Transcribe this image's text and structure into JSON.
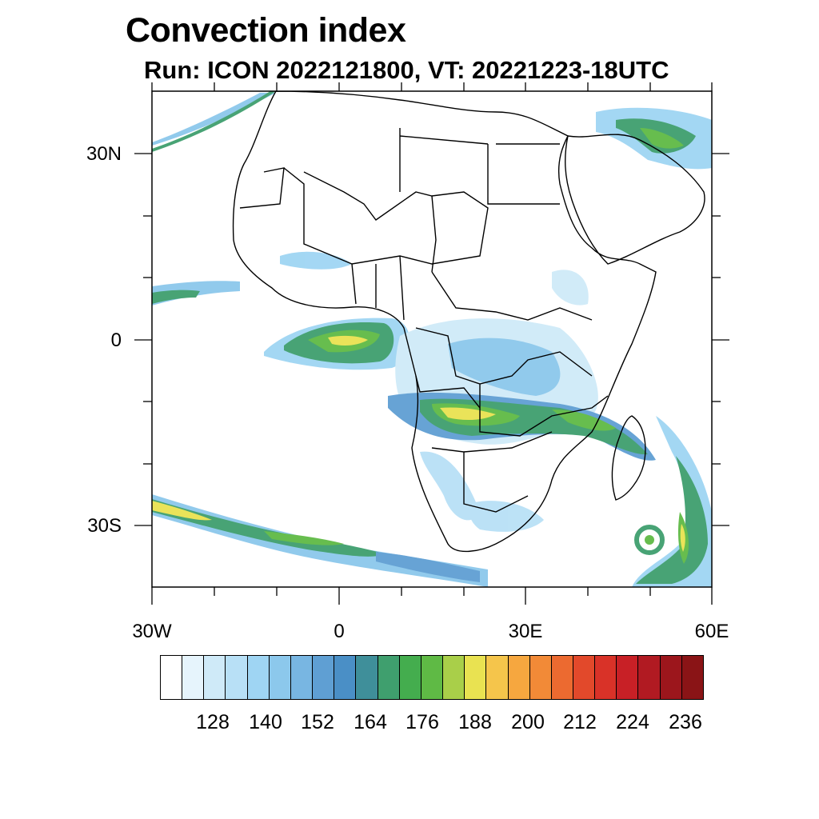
{
  "title": "Convection index",
  "subtitle": "Run: ICON 2022121800,  VT: 20221223-18UTC",
  "lat_labels": [
    "30N",
    "0",
    "30S"
  ],
  "lon_labels": [
    "30W",
    "0",
    "30E",
    "60E"
  ],
  "colorbar": {
    "labels": [
      "128",
      "140",
      "152",
      "164",
      "176",
      "188",
      "200",
      "212",
      "224",
      "236"
    ],
    "colors": [
      "#ffffff",
      "#e6f4fc",
      "#cfeaf8",
      "#b8e0f6",
      "#9fd5f3",
      "#8cc8ec",
      "#78b6e2",
      "#5f9fd3",
      "#4a8fc6",
      "#3f8f9a",
      "#3f9f6e",
      "#44ad4e",
      "#5fba45",
      "#a9cf49",
      "#e9e251",
      "#f5c54b",
      "#f6a73f",
      "#f28a37",
      "#ec6a30",
      "#e2492b",
      "#d93228",
      "#c82026",
      "#b11a22",
      "#9c161c",
      "#8a1416"
    ]
  },
  "colors": {
    "frame": "#000000",
    "land_line": "#000000"
  }
}
